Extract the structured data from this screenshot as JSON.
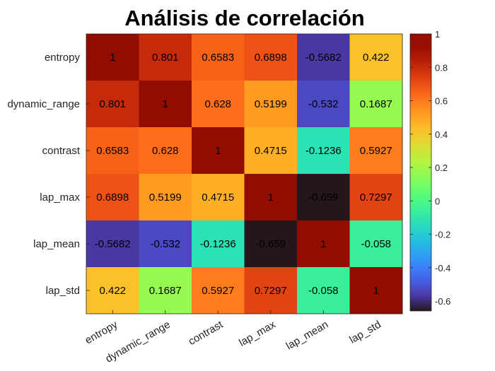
{
  "chart_data": {
    "type": "heatmap",
    "title": "Análisis de correlación",
    "xlabel": "",
    "ylabel": "",
    "rows": [
      "entropy",
      "dynamic_range",
      "contrast",
      "lap_max",
      "lap_mean",
      "lap_std"
    ],
    "columns": [
      "entropy",
      "dynamic_range",
      "contrast",
      "lap_max",
      "lap_mean",
      "lap_std"
    ],
    "values": [
      [
        1,
        0.801,
        0.6583,
        0.6898,
        -0.5682,
        0.422
      ],
      [
        0.801,
        1,
        0.628,
        0.5199,
        -0.532,
        0.1687
      ],
      [
        0.6583,
        0.628,
        1,
        0.4715,
        -0.1236,
        0.5927
      ],
      [
        0.6898,
        0.5199,
        0.4715,
        1,
        -0.659,
        0.7297
      ],
      [
        -0.5682,
        -0.532,
        -0.1236,
        -0.659,
        1,
        -0.058
      ],
      [
        0.422,
        0.1687,
        0.5927,
        0.7297,
        -0.058,
        1
      ]
    ],
    "value_labels": [
      [
        "1",
        "0.801",
        "0.6583",
        "0.6898",
        "-0.5682",
        "0.422"
      ],
      [
        "0.801",
        "1",
        "0.628",
        "0.5199",
        "-0.532",
        "0.1687"
      ],
      [
        "0.6583",
        "0.628",
        "1",
        "0.4715",
        "-0.1236",
        "0.5927"
      ],
      [
        "0.6898",
        "0.5199",
        "0.4715",
        "1",
        "-0.659",
        "0.7297"
      ],
      [
        "-0.5682",
        "-0.532",
        "-0.1236",
        "-0.659",
        "1",
        "-0.058"
      ],
      [
        "0.422",
        "0.1687",
        "0.5927",
        "0.7297",
        "-0.058",
        "1"
      ]
    ],
    "colormap": "turbo",
    "colorbar": {
      "range": [
        -0.659,
        1
      ],
      "ticks": [
        1,
        0.8,
        0.6,
        0.4,
        0.2,
        0,
        -0.2,
        -0.4,
        -0.6
      ],
      "tick_labels": [
        "1",
        "0.8",
        "0.6",
        "0.4",
        "0.2",
        "0",
        "-0.2",
        "-0.4",
        "-0.6"
      ]
    },
    "grid": false
  }
}
